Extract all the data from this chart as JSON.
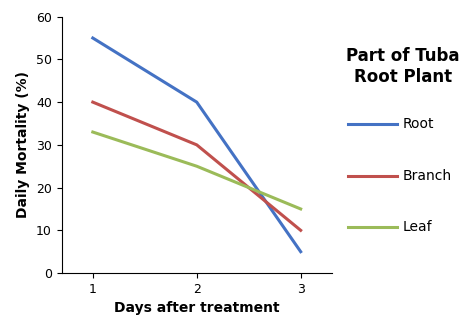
{
  "title_line1": "Part of Tuba",
  "title_line2": "Root Plant",
  "xlabel": "Days after treatment",
  "ylabel": "Daily Mortality (%)",
  "x": [
    1,
    2,
    3
  ],
  "root": [
    55,
    40,
    5
  ],
  "branch": [
    40,
    30,
    10
  ],
  "leaf": [
    33,
    25,
    15
  ],
  "root_color": "#4472C4",
  "branch_color": "#C0504D",
  "leaf_color": "#9BBB59",
  "ylim": [
    0,
    60
  ],
  "xlim": [
    0.7,
    3.3
  ],
  "yticks": [
    0,
    10,
    20,
    30,
    40,
    50,
    60
  ],
  "xticks": [
    1,
    2,
    3
  ],
  "legend_labels": [
    "Root",
    "Branch",
    "Leaf"
  ],
  "title_fontsize": 12,
  "axis_label_fontsize": 10,
  "tick_fontsize": 9,
  "legend_fontsize": 10,
  "linewidth": 2.2,
  "background_color": "#ffffff"
}
